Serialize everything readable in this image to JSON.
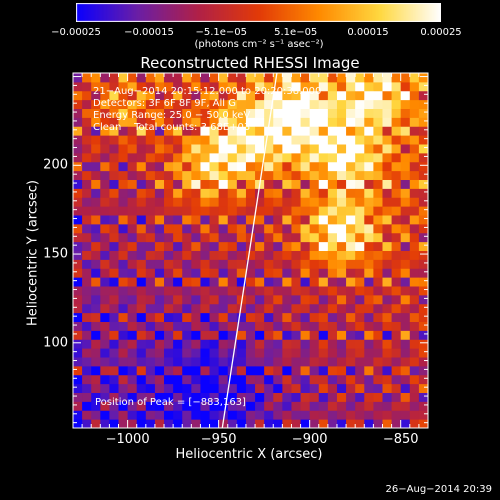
{
  "chart_data": {
    "type": "heatmap",
    "title": "Reconstructed RHESSI Image",
    "xlabel": "Heliocentric X (arcsec)",
    "ylabel": "Heliocentric Y (arcsec)",
    "xlim": [
      -1030,
      -835
    ],
    "ylim": [
      52,
      252
    ],
    "x_ticks": [
      "−1000",
      "−950",
      "−900",
      "−850"
    ],
    "x_tick_values": [
      -1000,
      -950,
      -900,
      -850
    ],
    "y_ticks": [
      "100",
      "150",
      "200"
    ],
    "y_tick_values": [
      100,
      150,
      200
    ],
    "colorbar": {
      "range": [
        -0.00025,
        0.00025
      ],
      "ticks": [
        "−0.00025",
        "−0.00015",
        "−5.1e−05",
        "5.1e−05",
        "0.00015",
        "0.00025"
      ],
      "tick_values": [
        -0.00025,
        -0.00015,
        -5.1e-05,
        5.1e-05,
        0.00015,
        0.00025
      ],
      "units": "(photons cm⁻² s⁻¹ asec⁻²)",
      "colormap": [
        "#0a00ff",
        "#6a1ea6",
        "#b02048",
        "#e23a08",
        "#ff8a00",
        "#ffd840",
        "#ffffff"
      ]
    },
    "annotations": [
      "21−Aug−2014 20:15:12.000 to 20:20:38.000",
      "Detectors: 3F 6F 8F 9F, All G",
      "Energy Range: 25.0 − 50.0 keV",
      "Clean    Total counts: 3.68E+03"
    ],
    "peak_label": "Position of Peak = [−883,163]",
    "limb_line": [
      [
        -948,
        52
      ],
      [
        -918,
        252
      ]
    ],
    "grid_cell_arcsec": 5
  },
  "footer_date": "26−Aug−2014 20:39"
}
